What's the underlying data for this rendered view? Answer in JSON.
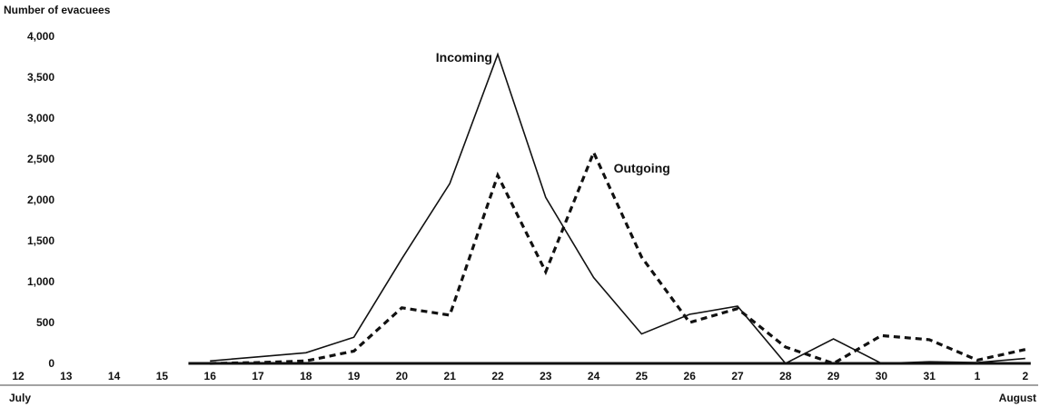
{
  "chart_data": {
    "type": "line",
    "title": "",
    "ylabel": "Number of evacuees",
    "xlabel": "",
    "ylim": [
      0,
      4000
    ],
    "yticks": [
      "4,000",
      "3,500",
      "3,000",
      "2,500",
      "2,000",
      "1,500",
      "1,000",
      "500",
      "0"
    ],
    "ytick_values": [
      4000,
      3500,
      3000,
      2500,
      2000,
      1500,
      1000,
      500,
      0
    ],
    "xticks": [
      "12",
      "13",
      "14",
      "15",
      "16",
      "17",
      "18",
      "19",
      "20",
      "21",
      "22",
      "23",
      "24",
      "25",
      "26",
      "27",
      "28",
      "29",
      "30",
      "31",
      "1",
      "2"
    ],
    "months": [
      {
        "label": "July",
        "start_index": 0,
        "end_index": 19
      },
      {
        "label": "August",
        "start_index": 20,
        "end_index": 21
      }
    ],
    "grid": false,
    "series": [
      {
        "name": "Incoming",
        "style": "solid",
        "color": "#111111",
        "start_index": 4,
        "values": [
          30,
          80,
          130,
          320,
          1280,
          2200,
          3780,
          2030,
          1050,
          360,
          600,
          700,
          0,
          300,
          0,
          20,
          10,
          60
        ]
      },
      {
        "name": "Outgoing",
        "style": "dashed",
        "color": "#111111",
        "start_index": 4,
        "values": [
          0,
          10,
          30,
          150,
          680,
          590,
          2300,
          1120,
          2580,
          1300,
          500,
          670,
          200,
          0,
          340,
          290,
          40,
          170
        ]
      }
    ]
  }
}
